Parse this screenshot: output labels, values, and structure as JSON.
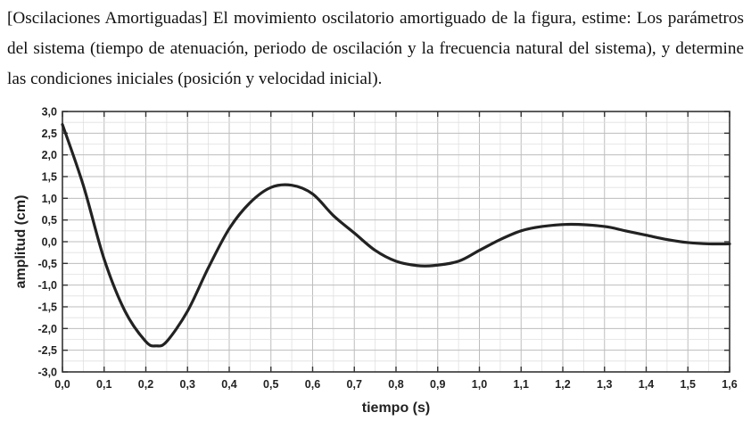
{
  "problem": {
    "text": "[Oscilaciones Amortiguadas] El movimiento oscilatorio amortiguado de la figura, estime: Los parámetros del sistema (tiempo de atenuación, periodo de oscilación y la frecuencia natural del sistema), y determine las condiciones iniciales (posición y velocidad inicial)."
  },
  "chart_data": {
    "type": "line",
    "xlabel": "tiempo (s)",
    "ylabel": "amplitud (cm)",
    "xlim": [
      0.0,
      1.6
    ],
    "ylim": [
      -3.0,
      3.0
    ],
    "x_ticks": [
      "0,0",
      "0,1",
      "0,2",
      "0,3",
      "0,4",
      "0,5",
      "0,6",
      "0,7",
      "0,8",
      "0,9",
      "1,0",
      "1,1",
      "1,2",
      "1,3",
      "1,4",
      "1,5",
      "1,6"
    ],
    "y_ticks": [
      "3,0",
      "2,5",
      "2,0",
      "1,5",
      "1,0",
      "0,5",
      "0,0",
      "-0,5",
      "-1,0",
      "-1,5",
      "-2,0",
      "-2,5",
      "-3,0"
    ],
    "grid": true,
    "series": [
      {
        "x": [
          0.0,
          0.05,
          0.1,
          0.15,
          0.2,
          0.225,
          0.25,
          0.3,
          0.35,
          0.4,
          0.45,
          0.5,
          0.55,
          0.6,
          0.65,
          0.7,
          0.75,
          0.8,
          0.85,
          0.89,
          0.95,
          1.0,
          1.05,
          1.1,
          1.15,
          1.22,
          1.3,
          1.35,
          1.4,
          1.45,
          1.5,
          1.55,
          1.6
        ],
        "y": [
          2.7,
          1.3,
          -0.4,
          -1.6,
          -2.3,
          -2.4,
          -2.3,
          -1.6,
          -0.6,
          0.3,
          0.9,
          1.25,
          1.3,
          1.1,
          0.6,
          0.2,
          -0.2,
          -0.45,
          -0.55,
          -0.55,
          -0.45,
          -0.2,
          0.05,
          0.25,
          0.35,
          0.4,
          0.35,
          0.25,
          0.15,
          0.05,
          -0.02,
          -0.05,
          -0.05
        ]
      }
    ],
    "colors": {
      "line": "#222222",
      "grid": "#c8c8c8",
      "frame": "#333333"
    }
  }
}
